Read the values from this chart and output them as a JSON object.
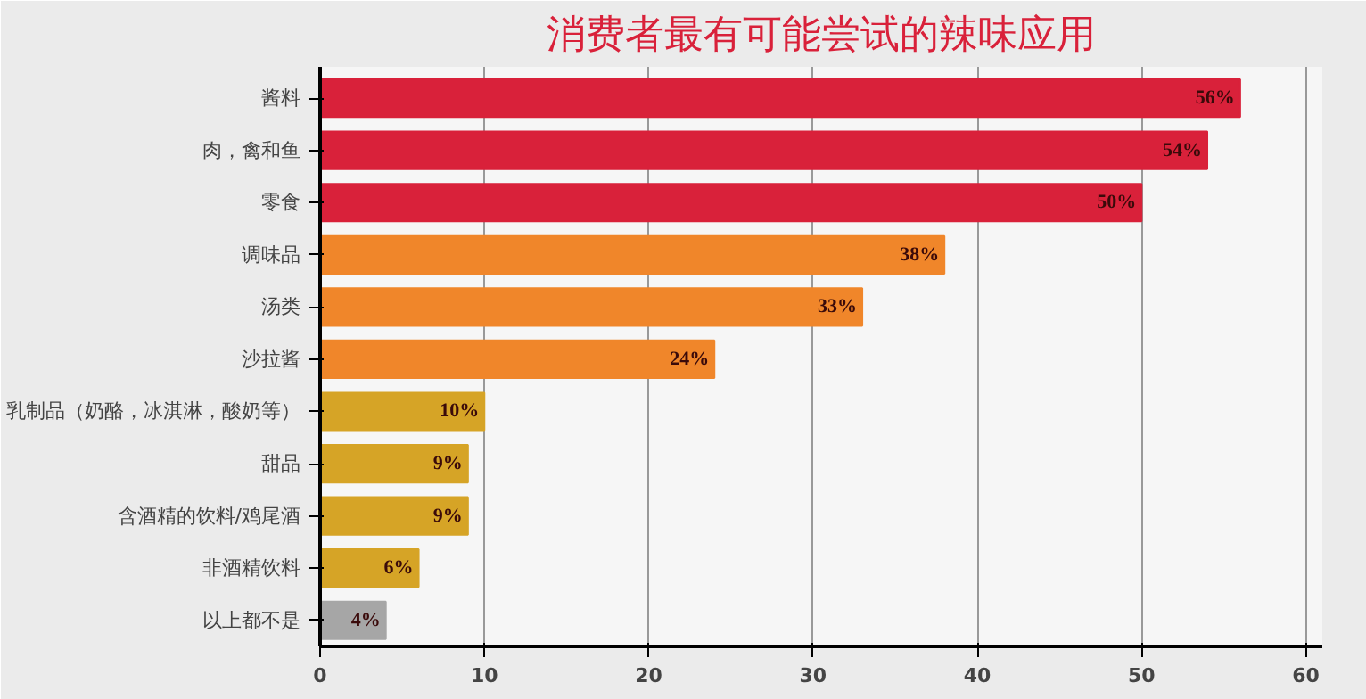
{
  "chart_data": {
    "type": "bar",
    "orientation": "horizontal",
    "title": "消费者最有可能尝试的辣味应用",
    "categories": [
      "酱料",
      "肉，禽和鱼",
      "零食",
      "调味品",
      "汤类",
      "沙拉酱",
      "乳制品（奶酪，冰淇淋，酸奶等）",
      "甜品",
      "含酒精的饮料/鸡尾酒",
      "非酒精饮料",
      "以上都不是"
    ],
    "values": [
      56,
      54,
      50,
      38,
      33,
      24,
      10,
      9,
      9,
      6,
      4
    ],
    "colors": [
      "#d9213a",
      "#d9213a",
      "#d9213a",
      "#f0862a",
      "#f0862a",
      "#f0862a",
      "#d6a426",
      "#d6a426",
      "#d6a426",
      "#d6a426",
      "#a6a6a6"
    ],
    "value_labels": [
      "56%",
      "54%",
      "50%",
      "38%",
      "33%",
      "24%",
      "10%",
      "9%",
      "9%",
      "6%",
      "4%"
    ],
    "xlim": [
      0,
      61
    ],
    "xticks": [
      0,
      10,
      20,
      30,
      40,
      50,
      60
    ],
    "grid": "x"
  }
}
